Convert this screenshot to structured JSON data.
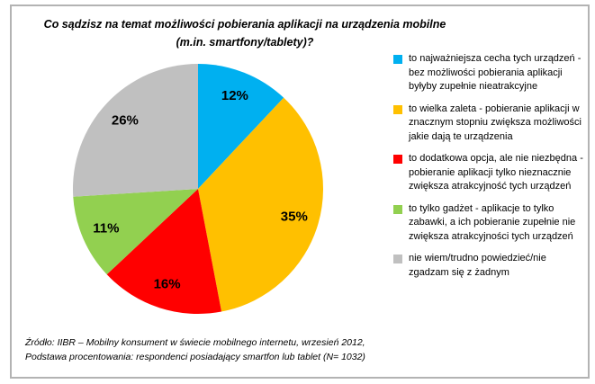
{
  "frame": {
    "border_color": "#b3b3b3",
    "background": "#ffffff"
  },
  "chart_data": {
    "type": "pie",
    "title_lines": [
      "Co sądzisz na temat możliwości pobierania aplikacji na urządzenia mobilne",
      "(m.in. smartfony/tablety)?"
    ],
    "values": [
      12,
      35,
      16,
      11,
      26
    ],
    "data_labels": [
      "12%",
      "35%",
      "16%",
      "11%",
      "26%"
    ],
    "colors": [
      "#00B0F0",
      "#FFC000",
      "#FF0000",
      "#92D050",
      "#C0C0C0"
    ],
    "legend_labels": [
      "to najważniejsza cecha tych urządzeń - bez możliwości pobierania aplikacji byłyby zupełnie nieatrakcyjne",
      "to wielka zaleta - pobieranie aplikacji w znacznym stopniu zwiększa możliwości jakie dają te urządzenia",
      "to dodatkowa opcja, ale nie niezbędna - pobieranie aplikacji tylko nieznacznie zwiększa atrakcyjność tych urządzeń",
      "to tylko gadżet - aplikacje to tylko zabawki, a ich pobieranie zupełnie nie zwiększa atrakcyjności tych urządzeń",
      "nie wiem/trudno powiedzieć/nie zgadzam się z żadnym"
    ],
    "legend_position": "right",
    "start_angle_deg": 0,
    "direction": "clockwise",
    "source_lines": [
      "Źródło: IIBR – Mobilny konsument w świecie mobilnego internetu, wrzesień 2012,",
      "Podstawa procentowania: respondenci posiadający smartfon lub tablet (N= 1032)"
    ]
  }
}
